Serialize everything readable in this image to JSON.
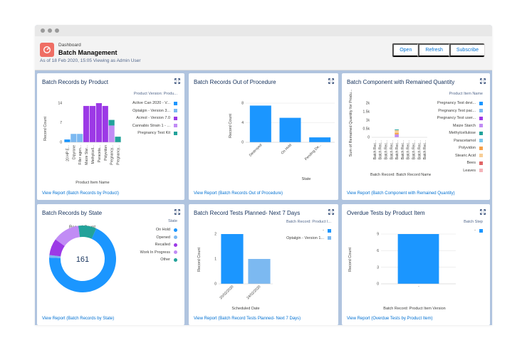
{
  "header": {
    "breadcrumb": "Dashboard",
    "title": "Batch Management",
    "meta": "As of 18 Feb 2020, 15:05 Viewing as Admin User",
    "buttons": {
      "open": "Open",
      "refresh": "Refresh",
      "subscribe": "Subscribe"
    }
  },
  "cards": {
    "c1": {
      "title": "Batch Records by Product",
      "legend_title": "Product Version: Produ...",
      "y_label": "Record Count",
      "x_label": "Product Item Name",
      "link": "View Report (Batch Records by Product)",
      "legend": [
        {
          "label": "Active Can 2020 - V...",
          "color": "#1b96ff"
        },
        {
          "label": "Optalgin - Version 3...",
          "color": "#7cb9f1"
        },
        {
          "label": "Acmol - Version 7.0",
          "color": "#9c39e6"
        },
        {
          "label": "Cannabis Strain 1 - ...",
          "color": "#c18cf5"
        },
        {
          "label": "Pregnancy Test Kit",
          "color": "#22a29a"
        }
      ]
    },
    "c2": {
      "title": "Batch Records Out of Procedure",
      "y_label": "Record Count",
      "x_label": "State",
      "link": "View Report (Batch Records Out of Procedure)"
    },
    "c3": {
      "title": "Batch Component with Remained Quantity",
      "legend_title": "Product Item Name",
      "y_label": "Sum of Remained Quantity for Produ...",
      "x_label": "Batch Record: Batch Record Name",
      "link": "View Report (Batch Component with Remained Quantity)",
      "legend": [
        {
          "label": "Pregnancy Test devi...",
          "color": "#1b96ff"
        },
        {
          "label": "Pregnancy Test pac...",
          "color": "#7cb9f1"
        },
        {
          "label": "Pregnancy Test user...",
          "color": "#9c39e6"
        },
        {
          "label": "Maize Starch",
          "color": "#c18cf5"
        },
        {
          "label": "Methylcellulose",
          "color": "#22a29a"
        },
        {
          "label": "Paracetamol",
          "color": "#7cc6ec"
        },
        {
          "label": "Polyvidon",
          "color": "#f6a14a"
        },
        {
          "label": "Stearic Acid",
          "color": "#f8ce96"
        },
        {
          "label": "Bees",
          "color": "#e16666"
        },
        {
          "label": "Leaves",
          "color": "#f4b4ba"
        }
      ]
    },
    "c4": {
      "title": "Batch Records by State",
      "legend_title": "State",
      "center_label": "Record Count",
      "total": "161",
      "link": "View Report (Batch Records by State)",
      "legend": [
        {
          "label": "On Hold",
          "color": "#1b96ff"
        },
        {
          "label": "Opened",
          "color": "#7cb9f1"
        },
        {
          "label": "Recalled",
          "color": "#9c39e6"
        },
        {
          "label": "Work In Progress",
          "color": "#c18cf5"
        },
        {
          "label": "Other",
          "color": "#22a29a"
        }
      ]
    },
    "c5": {
      "title": "Batch Record Tests Planned- Next 7 Days",
      "legend_title": "Batch Record: Product I...",
      "y_label": "Record Count",
      "x_label": "Scheduled Date",
      "link": "View Report (Batch Record Tests Planned- Next 7 Days)",
      "legend": [
        {
          "label": "-",
          "color": "#1b96ff"
        },
        {
          "label": "Optalgin - Version 1...",
          "color": "#7cb9f1"
        }
      ]
    },
    "c6": {
      "title": "Overdue Tests by Product Item",
      "legend_title": "Batch Step",
      "y_label": "Record Count",
      "x_label": "Batch Record: Product Item Version",
      "link": "View Report (Overdue Tests by Product Item)",
      "legend": [
        {
          "label": "-",
          "color": "#1b96ff"
        }
      ]
    }
  },
  "chart_data": [
    {
      "type": "bar",
      "title": "Batch Records by Product",
      "stacked": true,
      "xlabel": "Product Item Name",
      "ylabel": "Record Count",
      "ylim": [
        0,
        14
      ],
      "yticks": [
        0,
        7,
        14
      ],
      "categories": [
        "20 HP E...",
        "Dipyrone",
        "Filler agen...",
        "Maize Star...",
        "Methylcell...",
        "Paraceta...",
        "Polyvidon",
        "Pregnancy...",
        "Pregnancy..."
      ],
      "series": [
        {
          "name": "Active Can 2020 - V...",
          "color": "#1b96ff",
          "values": [
            1,
            0,
            0,
            0,
            0,
            0,
            0,
            0,
            0
          ]
        },
        {
          "name": "Optalgin - Version 3...",
          "color": "#7cb9f1",
          "values": [
            0,
            3,
            3,
            0,
            0,
            0,
            0,
            0,
            0
          ]
        },
        {
          "name": "Acmol - Version 7.0",
          "color": "#9c39e6",
          "values": [
            0,
            0,
            0,
            13,
            13,
            14,
            13,
            0,
            0
          ]
        },
        {
          "name": "Cannabis Strain 1 - ...",
          "color": "#c18cf5",
          "values": [
            0,
            0,
            0,
            0,
            0,
            0,
            0,
            6,
            0
          ]
        },
        {
          "name": "Pregnancy Test Kit",
          "color": "#22a29a",
          "values": [
            0,
            0,
            0,
            0,
            0,
            0,
            0,
            2,
            2
          ]
        }
      ]
    },
    {
      "type": "bar",
      "title": "Batch Records Out of Procedure",
      "xlabel": "State",
      "ylabel": "Record Count",
      "ylim": [
        0,
        8
      ],
      "yticks": [
        0,
        4,
        8
      ],
      "categories": [
        "Destroyed",
        "On Hold",
        "Pending De..."
      ],
      "values": [
        7.5,
        5,
        1
      ]
    },
    {
      "type": "bar",
      "title": "Batch Component with Remained Quantity",
      "stacked": true,
      "xlabel": "Batch Record: Batch Record Name",
      "ylabel": "Sum of Remained Quantity for Produ...",
      "ylim": [
        0,
        2000
      ],
      "yticks": [
        0,
        500,
        1000,
        1500,
        2000
      ],
      "tick_labels": [
        "0",
        "0.5k",
        "1k",
        "1.5k",
        "2k"
      ],
      "categories": [
        "Batch Rec...",
        "Batch Rec...",
        "Batch Rec...",
        "Batch Rec...",
        "Batch Rec...",
        "Batch Rec...",
        "Batch Rec...",
        "Batch Rec...",
        "Batch Rec...",
        "Batch Rec..."
      ],
      "series": [
        {
          "name": "Maize Starch",
          "color": "#c18cf5",
          "values": [
            0,
            0,
            0,
            0,
            170,
            0,
            0,
            0,
            0,
            0
          ]
        },
        {
          "name": "Polyvidon",
          "color": "#f6a14a",
          "values": [
            0,
            0,
            0,
            0,
            90,
            0,
            0,
            0,
            0,
            0
          ]
        },
        {
          "name": "Stearic Acid",
          "color": "#f8ce96",
          "values": [
            0,
            0,
            0,
            0,
            160,
            0,
            0,
            0,
            0,
            0
          ]
        },
        {
          "name": "Methylcellulose",
          "color": "#22a29a",
          "values": [
            0,
            0,
            0,
            0,
            40,
            0,
            0,
            0,
            0,
            0
          ]
        }
      ]
    },
    {
      "type": "pie",
      "donut": true,
      "title": "Batch Records by State",
      "total": 161,
      "categories": [
        "On Hold",
        "Opened",
        "Recalled",
        "Work In Progress",
        "Other"
      ],
      "values": [
        111,
        2,
        13,
        21,
        14
      ],
      "colors": [
        "#1b96ff",
        "#7cb9f1",
        "#9c39e6",
        "#c18cf5",
        "#22a29a"
      ]
    },
    {
      "type": "bar",
      "title": "Batch Record Tests Planned- Next 7 Days",
      "xlabel": "Scheduled Date",
      "ylabel": "Record Count",
      "ylim": [
        0,
        2
      ],
      "yticks": [
        0,
        1,
        2
      ],
      "categories": [
        "20/02/2020",
        "24/02/2020"
      ],
      "series": [
        {
          "name": "-",
          "color": "#1b96ff",
          "values": [
            2,
            0
          ]
        },
        {
          "name": "Optalgin - Version 1...",
          "color": "#7cb9f1",
          "values": [
            0,
            1
          ]
        }
      ]
    },
    {
      "type": "bar",
      "title": "Overdue Tests by Product Item",
      "xlabel": "Batch Record: Product Item Version",
      "ylabel": "Record Count",
      "ylim": [
        0,
        9
      ],
      "yticks": [
        0,
        3,
        6,
        9
      ],
      "categories": [
        "-"
      ],
      "values": [
        9
      ]
    }
  ]
}
